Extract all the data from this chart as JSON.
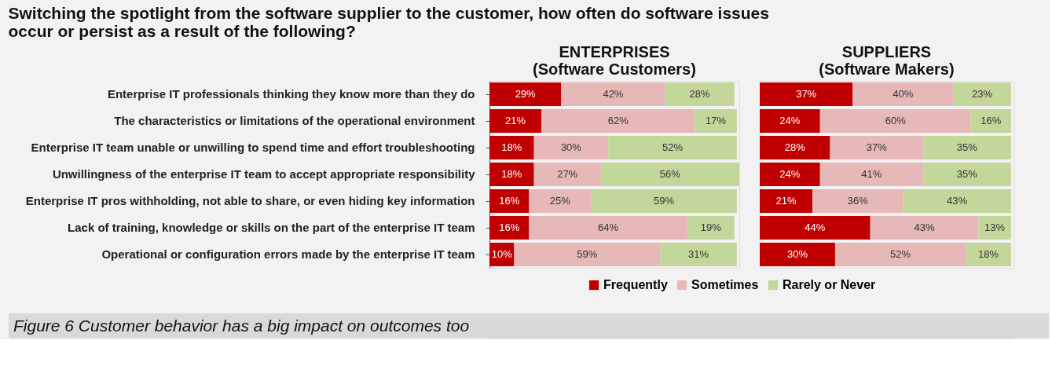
{
  "chart_data": [
    {
      "type": "bar",
      "orientation": "horizontal",
      "stacked": true,
      "title": "Switching the spotlight from the software supplier to the customer, how often do software issues occur or persist as a result of the following?",
      "subtitle": "ENTERPRISES\n(Software Customers)",
      "categories": [
        "Enterprise IT professionals thinking they know more than they do",
        "The characteristics or limitations of the operational environment",
        "Enterprise IT team unable or unwilling to spend time and effort troubleshooting",
        "Unwillingness of the enterprise IT team to accept appropriate responsibility",
        "Enterprise IT pros withholding, not able to share, or even hiding key information",
        "Lack of training, knowledge or skills on the part of the enterprise IT team",
        "Operational or configuration errors made by the enterprise IT team"
      ],
      "series": [
        {
          "name": "Frequently",
          "color": "#c00000",
          "values": [
            29,
            21,
            18,
            18,
            16,
            16,
            10
          ],
          "value_labels": [
            "29%",
            "21%",
            "18%",
            "18%",
            "16%",
            "16%",
            "10%"
          ]
        },
        {
          "name": "Sometimes",
          "color": "#e6b8b7",
          "values": [
            42,
            62,
            30,
            27,
            25,
            64,
            59
          ],
          "value_labels": [
            "42%",
            "62%",
            "30%",
            "27%",
            "25%",
            "64%",
            "59%"
          ]
        },
        {
          "name": "Rarely or Never",
          "color": "#c4d79b",
          "values": [
            28,
            17,
            52,
            56,
            59,
            19,
            31
          ],
          "value_labels": [
            "28%",
            "17%",
            "52%",
            "56%",
            "59%",
            "19%",
            "31%"
          ]
        }
      ],
      "xlim": [
        0,
        101
      ],
      "tick_labels": "y",
      "grid": false,
      "legend": "bottom",
      "annotations": [
        "Figure 6    Customer behavior has a big impact on outcomes too"
      ]
    },
    {
      "type": "bar",
      "orientation": "horizontal",
      "stacked": true,
      "title": "SUPPLIERS\n(Software Makers)",
      "series": [
        {
          "name": "Frequently",
          "color": "#c00000",
          "values": [
            37,
            24,
            28,
            24,
            21,
            44,
            30
          ],
          "value_labels": [
            "37%",
            "24%",
            "28%",
            "24%",
            "21%",
            "44%",
            "30%"
          ]
        },
        {
          "name": "Sometimes",
          "color": "#e6b8b7",
          "values": [
            40,
            60,
            37,
            41,
            36,
            43,
            52
          ],
          "value_labels": [
            "40%",
            "60%",
            "37%",
            "41%",
            "36%",
            "43%",
            "52%"
          ]
        },
        {
          "name": "Rarely or Never",
          "color": "#c4d79b",
          "values": [
            23,
            16,
            35,
            35,
            43,
            13,
            18
          ],
          "value_labels": [
            "23%",
            "16%",
            "35%",
            "35%",
            "43%",
            "13%",
            "18%"
          ]
        }
      ],
      "xlim": [
        0,
        101
      ],
      "tick_labels": false,
      "grid": false,
      "legend": "bottom"
    }
  ]
}
